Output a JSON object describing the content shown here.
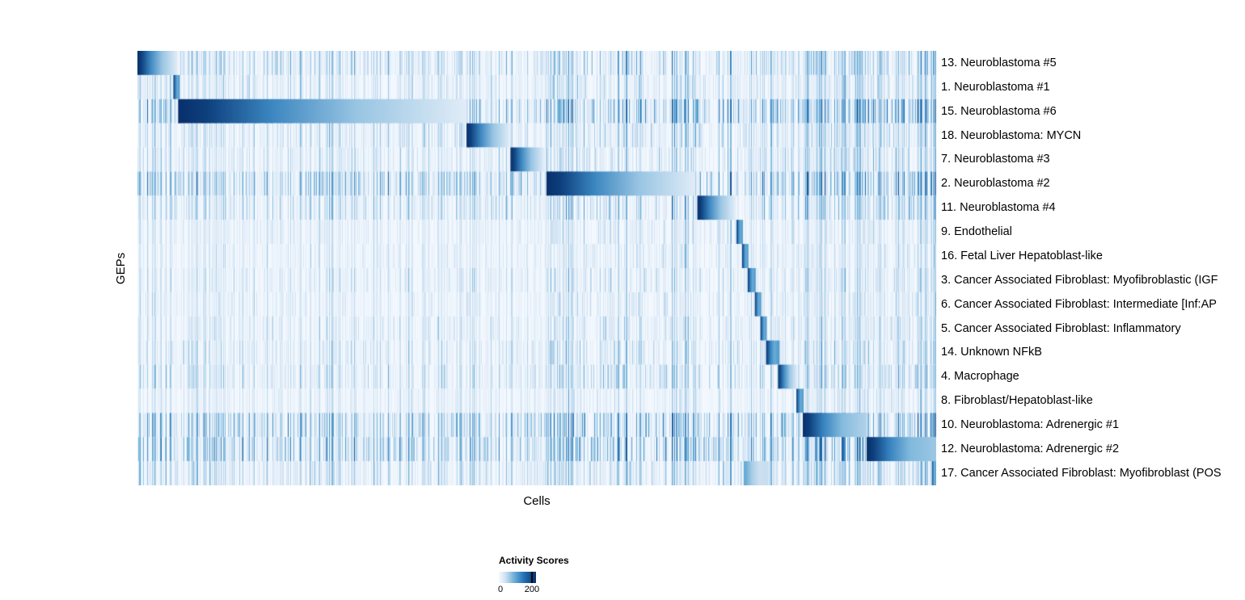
{
  "chart_data": {
    "type": "heatmap",
    "xlabel": "Cells",
    "ylabel": "GEPs",
    "colormap": "Blues",
    "legend": {
      "title": "Activity Scores",
      "min_label": "0",
      "max_label": "200",
      "min": 0,
      "max": 200,
      "max_tick_fraction": 0.89
    },
    "noise_bands": [
      {
        "start": 0.05,
        "end": 0.42,
        "mult": 1.1
      },
      {
        "start": 0.512,
        "end": 0.7,
        "mult": 1.7
      },
      {
        "start": 0.7,
        "end": 0.75,
        "mult": 1.4
      },
      {
        "start": 0.75,
        "end": 0.835,
        "mult": 1.2
      },
      {
        "start": 0.835,
        "end": 1.0,
        "mult": 1.6
      }
    ],
    "rows": [
      {
        "label": "13. Neuroblastoma #5",
        "noise": 0.55,
        "blocks": [
          {
            "start": 0.0,
            "end": 0.05,
            "peak": 1.0
          }
        ]
      },
      {
        "label": "1. Neuroblastoma #1",
        "noise": 0.4,
        "blocks": [
          {
            "start": 0.045,
            "end": 0.053,
            "peak": 0.95
          }
        ]
      },
      {
        "label": "15. Neuroblastoma #6",
        "noise": 0.8,
        "blocks": [
          {
            "start": 0.051,
            "end": 0.412,
            "peak": 1.0
          }
        ]
      },
      {
        "label": "18. Neuroblastoma: MYCN",
        "noise": 0.45,
        "blocks": [
          {
            "start": 0.412,
            "end": 0.466,
            "peak": 1.0
          }
        ]
      },
      {
        "label": "7. Neuroblastoma #3",
        "noise": 0.4,
        "blocks": [
          {
            "start": 0.467,
            "end": 0.509,
            "peak": 1.0
          }
        ]
      },
      {
        "label": "2. Neuroblastoma #2",
        "noise": 0.8,
        "blocks": [
          {
            "start": 0.512,
            "end": 0.699,
            "peak": 1.0
          }
        ]
      },
      {
        "label": "11. Neuroblastoma #4",
        "noise": 0.5,
        "blocks": [
          {
            "start": 0.701,
            "end": 0.748,
            "peak": 1.0
          }
        ]
      },
      {
        "label": "9. Endothelial",
        "noise": 0.3,
        "blocks": [
          {
            "start": 0.75,
            "end": 0.758,
            "peak": 0.95
          }
        ]
      },
      {
        "label": "16. Fetal Liver Hepatoblast-like",
        "noise": 0.3,
        "blocks": [
          {
            "start": 0.757,
            "end": 0.765,
            "peak": 0.95
          }
        ]
      },
      {
        "label": "3. Cancer Associated Fibroblast: Myofibroblastic (IGF",
        "noise": 0.35,
        "blocks": [
          {
            "start": 0.764,
            "end": 0.774,
            "peak": 0.95
          }
        ]
      },
      {
        "label": "6. Cancer Associated Fibroblast: Intermediate [Inf:AP",
        "noise": 0.3,
        "blocks": [
          {
            "start": 0.773,
            "end": 0.781,
            "peak": 0.95
          }
        ]
      },
      {
        "label": "5. Cancer Associated Fibroblast: Inflammatory",
        "noise": 0.35,
        "blocks": [
          {
            "start": 0.78,
            "end": 0.788,
            "peak": 0.95
          }
        ]
      },
      {
        "label": "14. Unknown NFkB",
        "noise": 0.4,
        "blocks": [
          {
            "start": 0.787,
            "end": 0.804,
            "peak": 0.95
          }
        ]
      },
      {
        "label": "4. Macrophage",
        "noise": 0.45,
        "blocks": [
          {
            "start": 0.802,
            "end": 0.826,
            "peak": 0.95
          }
        ]
      },
      {
        "label": "8. Fibroblast/Hepatoblast-like",
        "noise": 0.3,
        "blocks": [
          {
            "start": 0.825,
            "end": 0.834,
            "peak": 0.95
          }
        ]
      },
      {
        "label": "10. Neuroblastoma: Adrenergic #1",
        "noise": 0.8,
        "blocks": [
          {
            "start": 0.833,
            "end": 0.913,
            "peak": 1.0,
            "end_peak": 0.25
          }
        ]
      },
      {
        "label": "12. Neuroblastoma: Adrenergic #2",
        "noise": 0.8,
        "blocks": [
          {
            "start": 0.913,
            "end": 1.0,
            "peak": 1.0,
            "end_peak": 0.3
          }
        ]
      },
      {
        "label": "17. Cancer Associated Fibroblast: Myofibroblast (POS",
        "noise": 0.5,
        "blocks": [
          {
            "start": 0.759,
            "end": 0.79,
            "peak": 0.45,
            "end_peak": 0.2
          },
          {
            "start": 0.995,
            "end": 1.0,
            "peak": 0.85
          }
        ]
      }
    ]
  }
}
